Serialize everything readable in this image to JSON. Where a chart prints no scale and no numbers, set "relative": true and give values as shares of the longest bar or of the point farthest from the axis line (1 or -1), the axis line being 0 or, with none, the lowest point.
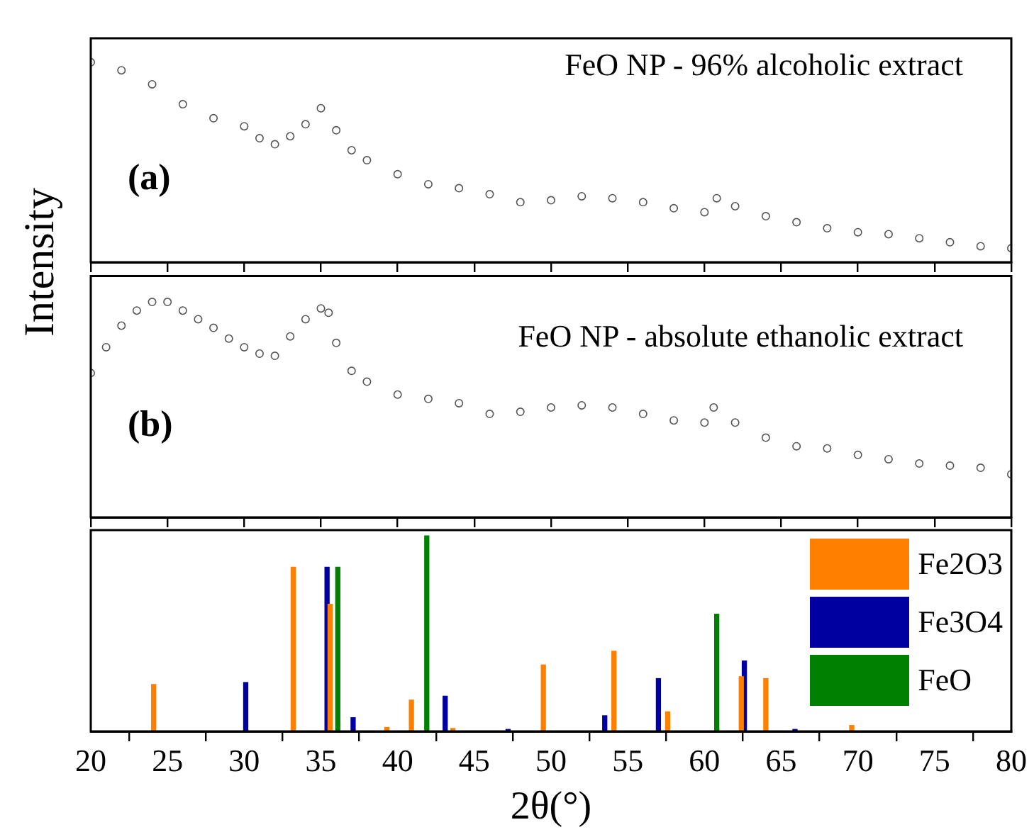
{
  "chart_data": [
    {
      "type": "scatter",
      "ylabel": "Intensity",
      "annotations": [
        "FeO NP - 96% alcoholic extract",
        "(a)"
      ],
      "relative": true,
      "marker": "circle",
      "tick_labels": false,
      "xlim": [
        20,
        80
      ],
      "xticks": [
        20,
        25,
        30,
        35,
        40,
        45,
        50,
        55,
        60,
        65,
        70,
        75,
        80
      ],
      "x": [
        20,
        22,
        24,
        26,
        28,
        30,
        31,
        32,
        33,
        34,
        35,
        36,
        37,
        38,
        40,
        42,
        44,
        46,
        48,
        50,
        52,
        54,
        56,
        58,
        60,
        60.8,
        62,
        64,
        66,
        68,
        70,
        72,
        74,
        76,
        78,
        80
      ],
      "series": [
        {
          "color": "#555555",
          "values": [
            1.0,
            0.96,
            0.89,
            0.79,
            0.72,
            0.68,
            0.62,
            0.59,
            0.63,
            0.69,
            0.77,
            0.66,
            0.56,
            0.51,
            0.44,
            0.39,
            0.37,
            0.34,
            0.3,
            0.31,
            0.33,
            0.32,
            0.3,
            0.27,
            0.25,
            0.32,
            0.28,
            0.23,
            0.2,
            0.17,
            0.15,
            0.14,
            0.12,
            0.1,
            0.08,
            0.07
          ]
        }
      ]
    },
    {
      "type": "scatter",
      "annotations": [
        "FeO NP - absolute ethanolic extract",
        "(b)"
      ],
      "relative": true,
      "marker": "circle",
      "tick_labels": false,
      "xlim": [
        20,
        80
      ],
      "xticks": [
        20,
        25,
        30,
        35,
        40,
        45,
        50,
        55,
        60,
        65,
        70,
        75,
        80
      ],
      "x": [
        20,
        21,
        22,
        23,
        24,
        25,
        26,
        27,
        28,
        29,
        30,
        31,
        32,
        33,
        34,
        35,
        35.5,
        36,
        37,
        38,
        40,
        42,
        44,
        46,
        48,
        50,
        52,
        54,
        56,
        58,
        60,
        60.6,
        62,
        64,
        66,
        68,
        70,
        72,
        74,
        76,
        78,
        80
      ],
      "series": [
        {
          "color": "#555555",
          "values": [
            0.67,
            0.79,
            0.89,
            0.96,
            1.0,
            1.0,
            0.96,
            0.92,
            0.88,
            0.83,
            0.79,
            0.76,
            0.75,
            0.84,
            0.92,
            0.97,
            0.95,
            0.81,
            0.68,
            0.63,
            0.57,
            0.55,
            0.53,
            0.48,
            0.49,
            0.51,
            0.52,
            0.51,
            0.48,
            0.45,
            0.44,
            0.51,
            0.44,
            0.37,
            0.33,
            0.32,
            0.29,
            0.27,
            0.25,
            0.24,
            0.23,
            0.2
          ]
        }
      ]
    },
    {
      "type": "bar",
      "xlabel": "2θ(°)",
      "relative": true,
      "legend": "top right",
      "tick_labels": "x",
      "xlim": [
        20,
        80
      ],
      "xticks": [
        20,
        25,
        30,
        35,
        40,
        45,
        50,
        55,
        60,
        65,
        70,
        75,
        80
      ],
      "series": [
        {
          "name": "Fe2O3",
          "color": "#ff8000",
          "x": [
            24.1,
            33.2,
            35.6,
            39.3,
            40.9,
            43.6,
            49.5,
            54.1,
            57.6,
            62.4,
            64.0,
            69.6
          ],
          "values": [
            0.24,
            0.84,
            0.65,
            0.02,
            0.16,
            0.015,
            0.34,
            0.41,
            0.1,
            0.28,
            0.27,
            0.03
          ]
        },
        {
          "name": "Fe3O4",
          "color": "#0000a0",
          "x": [
            30.1,
            35.4,
            37.1,
            43.1,
            47.2,
            53.5,
            57.0,
            62.6,
            65.9
          ],
          "values": [
            0.25,
            0.84,
            0.07,
            0.18,
            0.01,
            0.08,
            0.27,
            0.36,
            0.01
          ]
        },
        {
          "name": "FeO",
          "color": "#008000",
          "x": [
            36.1,
            41.9,
            60.8
          ],
          "values": [
            0.84,
            1.0,
            0.6
          ]
        }
      ]
    }
  ]
}
